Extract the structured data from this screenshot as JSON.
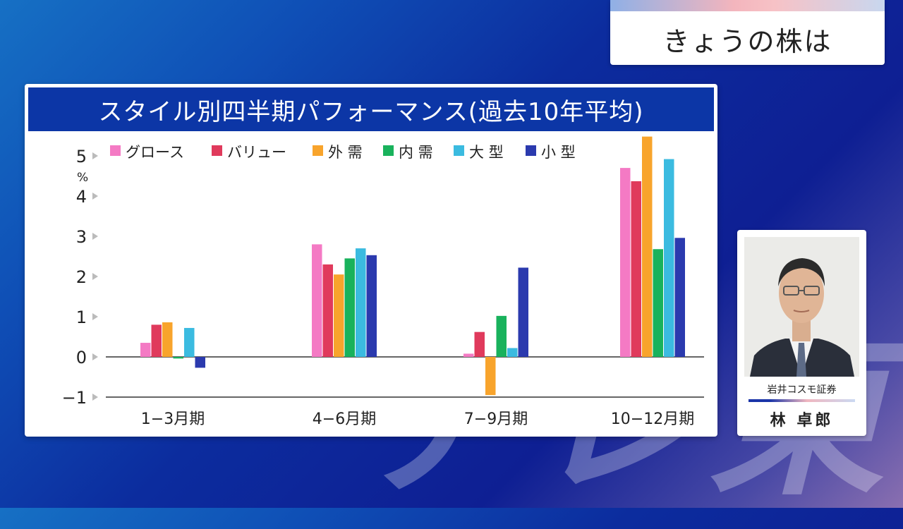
{
  "program": {
    "corner_title": "きょうの株は",
    "watermark": "テレ東"
  },
  "guest": {
    "company": "岩井コスモ証券",
    "name": "林 卓郎"
  },
  "chart_data": {
    "type": "bar",
    "title": "スタイル別四半期パフォーマンス(過去10年平均)",
    "ylabel": "%",
    "xlabel": "",
    "ylim": [
      -1,
      5.5
    ],
    "yticks": [
      -1,
      0,
      1,
      2,
      3,
      4,
      5
    ],
    "ytick_labels": [
      "−1",
      "0",
      "1",
      "2",
      "3",
      "4",
      "5"
    ],
    "grid": false,
    "legend_position": "top-left",
    "categories": [
      "1−3月期",
      "4−6月期",
      "7−9月期",
      "10−12月期"
    ],
    "series": [
      {
        "name": "グロース",
        "color": "#f47ac4",
        "values": [
          0.35,
          2.8,
          0.08,
          4.7
        ]
      },
      {
        "name": "バリュー",
        "color": "#e03a5c",
        "values": [
          0.8,
          2.3,
          0.62,
          4.37
        ]
      },
      {
        "name": "外 需",
        "color": "#f8a42c",
        "values": [
          0.86,
          2.05,
          -0.95,
          5.48
        ]
      },
      {
        "name": "内 需",
        "color": "#19b25c",
        "values": [
          -0.04,
          2.45,
          1.02,
          2.68
        ]
      },
      {
        "name": "大 型",
        "color": "#3bbbe0",
        "values": [
          0.72,
          2.7,
          0.22,
          4.92
        ]
      },
      {
        "name": "小 型",
        "color": "#2b3aae",
        "values": [
          -0.27,
          2.53,
          2.22,
          2.96
        ]
      }
    ]
  }
}
